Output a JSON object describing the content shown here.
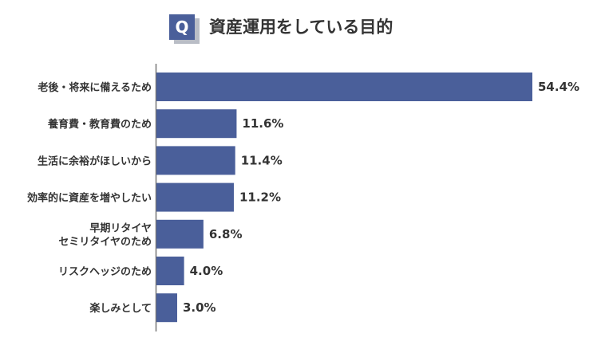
{
  "title": "資産運用をしている目的",
  "title_badge": "Q",
  "colors": {
    "bar": "#4a5f9a",
    "badge": "#4a5f9a",
    "text": "#333333"
  },
  "chart_data": {
    "type": "bar",
    "orientation": "horizontal",
    "title": "資産運用をしている目的",
    "categories": [
      [
        "老後・将来に備えるため"
      ],
      [
        "養育費・教育費のため"
      ],
      [
        "生活に余裕がほしいから"
      ],
      [
        "効率的に資産を増やしたい"
      ],
      [
        "早期リタイヤ",
        "セミリタイヤのため"
      ],
      [
        "リスクヘッジのため"
      ],
      [
        "楽しみとして"
      ]
    ],
    "values": [
      54.4,
      11.6,
      11.4,
      11.2,
      6.8,
      4.0,
      3.0
    ],
    "value_labels": [
      "54.4%",
      "11.6%",
      "11.4%",
      "11.2%",
      "6.8%",
      "4.0%",
      "3.0%"
    ],
    "unit": "%",
    "xlim": [
      0,
      57
    ],
    "grid": false,
    "legend": "none"
  }
}
